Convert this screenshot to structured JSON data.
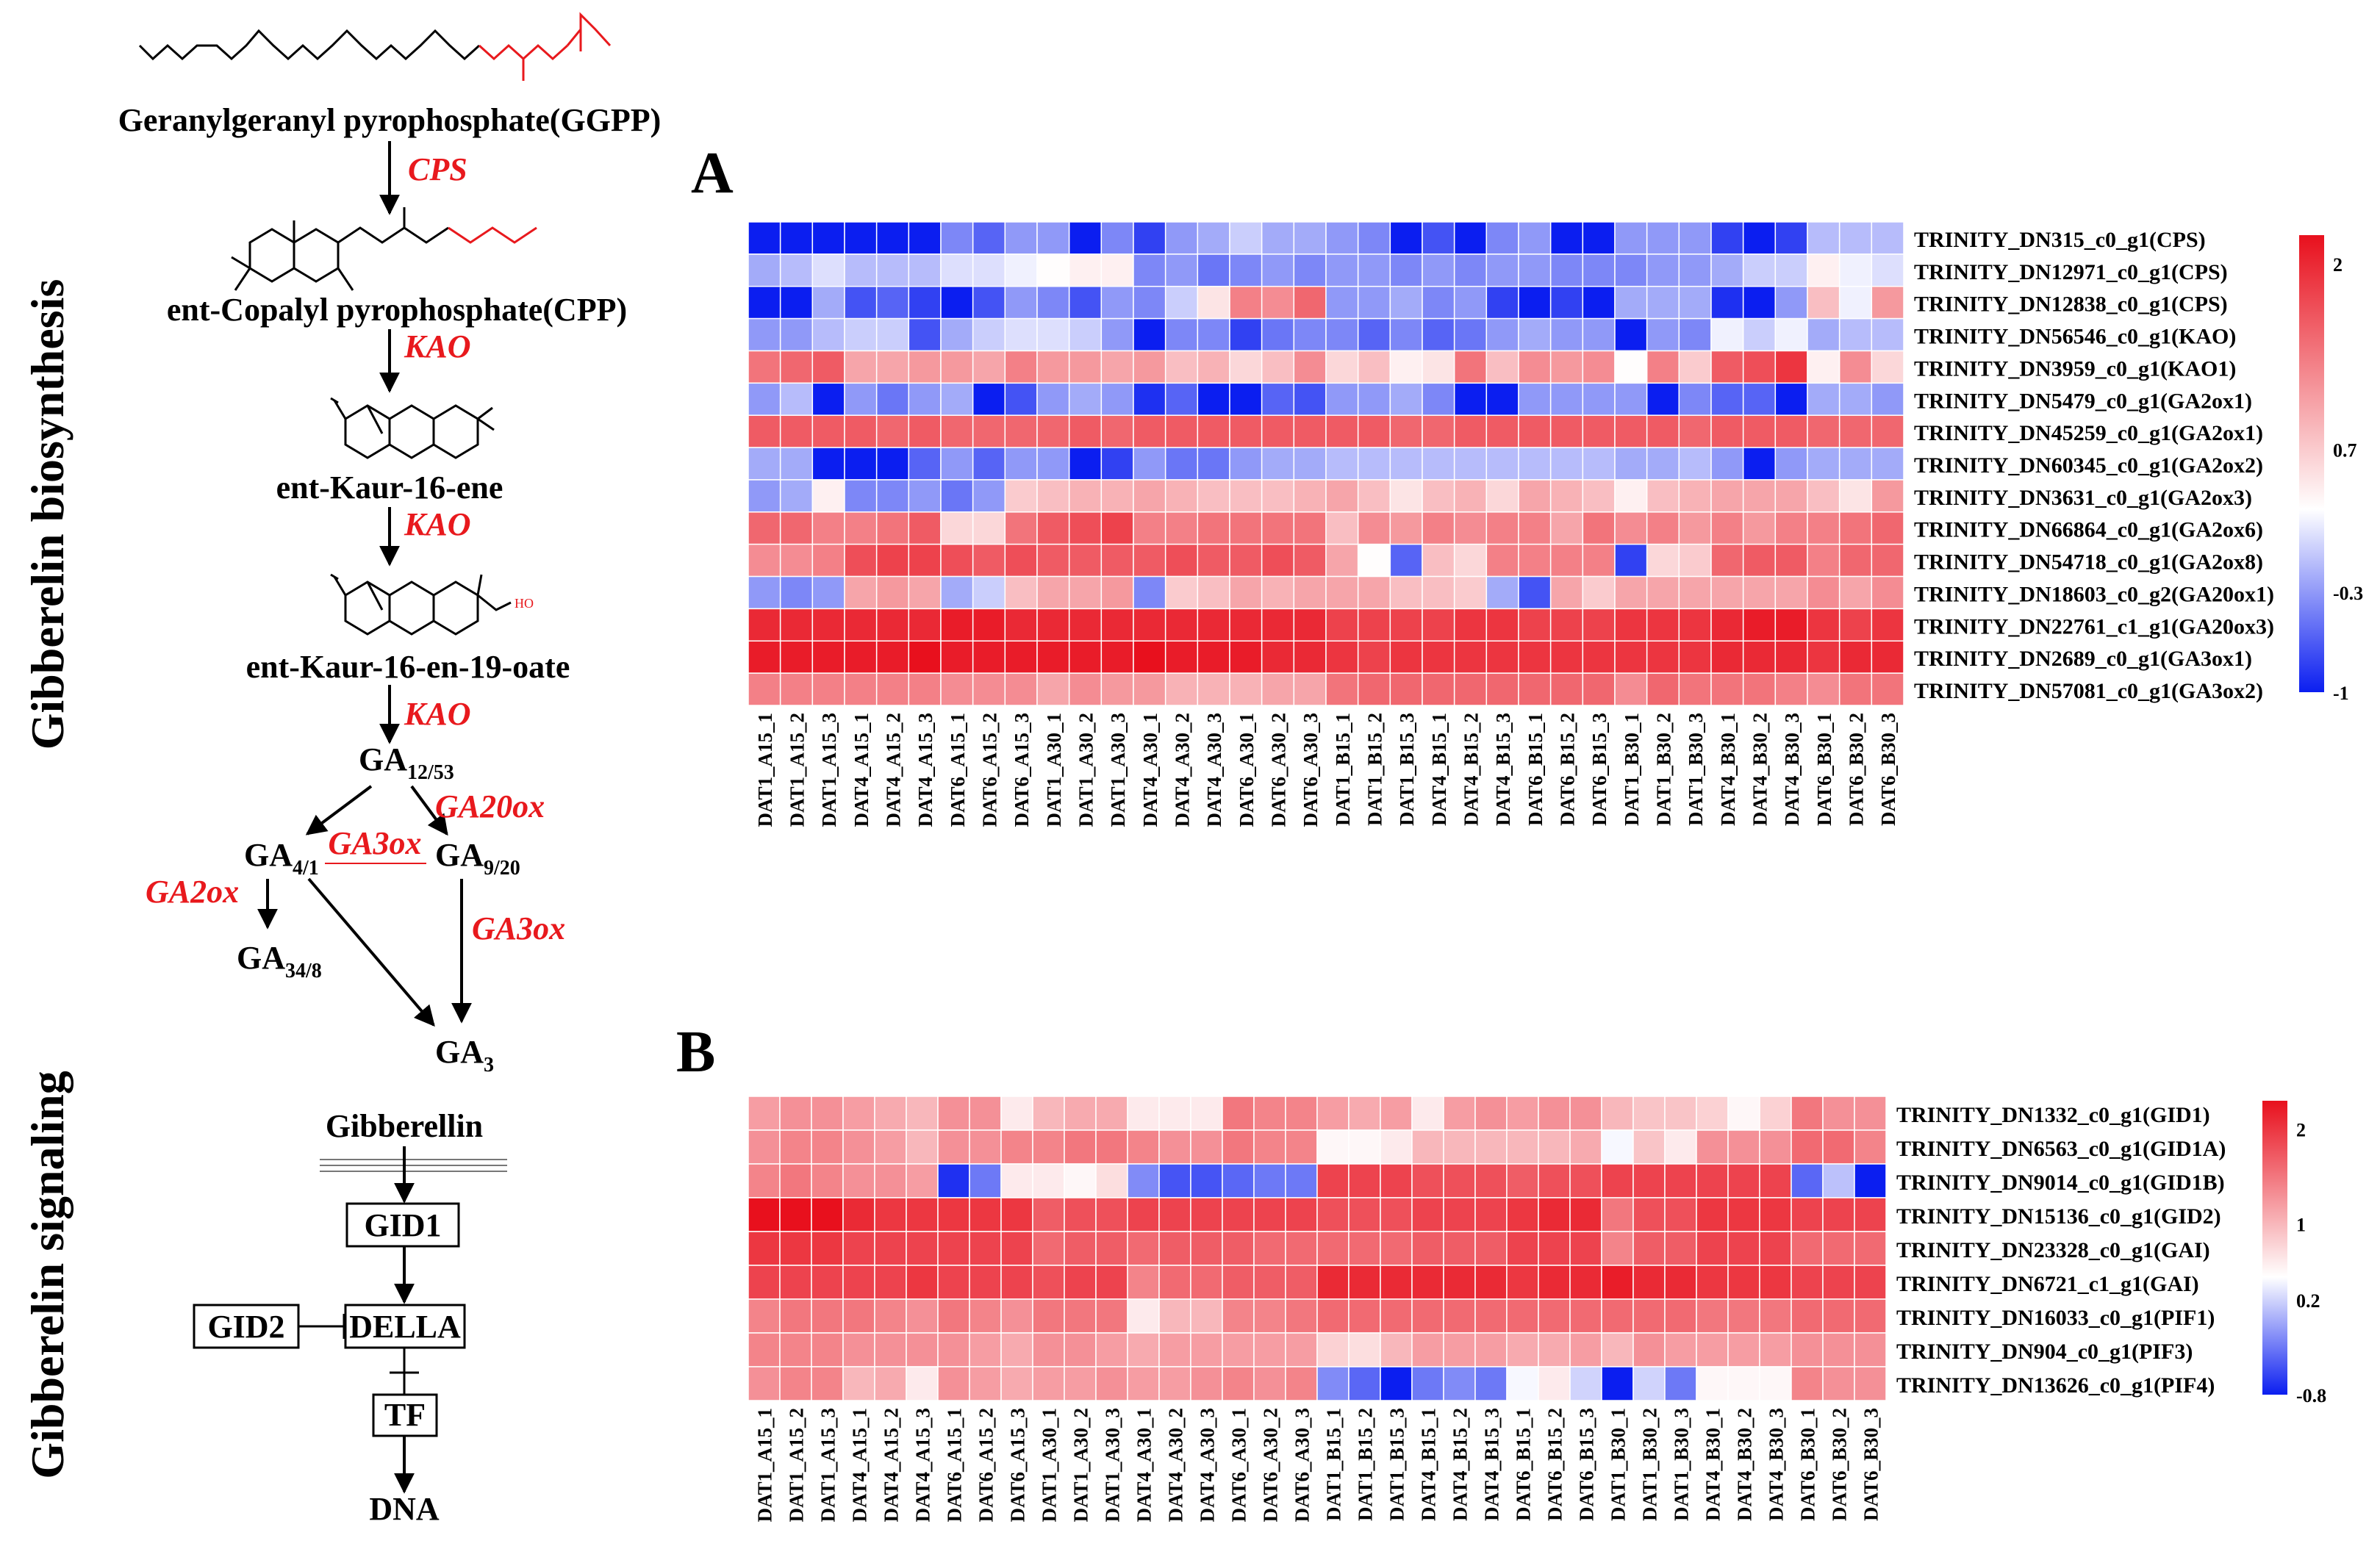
{
  "pathway": {
    "side_label_biosynthesis": "Gibberelin biosynthesis",
    "side_label_signaling": "Gibberelin signaling",
    "compounds": [
      "Geranylgeranyl pyrophosphate(GGPP)",
      "ent-Copalyl pyrophosphate(CPP)",
      "ent-Kaur-16-ene",
      "ent-Kaur-16-en-19-oate"
    ],
    "enzymes": {
      "cps": "CPS",
      "kao1": "KAO",
      "kao2": "KAO",
      "kao3": "KAO",
      "ga20ox": "GA20ox",
      "ga3ox_mid": "GA3ox",
      "ga2ox": "GA2ox",
      "ga3ox_right": "GA3ox"
    },
    "ga_nodes": {
      "ga12": {
        "base": "GA",
        "sub": "12/53"
      },
      "ga4": {
        "base": "GA",
        "sub": "4/1"
      },
      "ga9": {
        "base": "GA",
        "sub": "9/20"
      },
      "ga34": {
        "base": "GA",
        "sub": "34/8"
      },
      "ga3": {
        "base": "GA",
        "sub": "3"
      }
    },
    "signaling": {
      "gibberellin": "Gibberellin",
      "gid1": "GID1",
      "gid2": "GID2",
      "della": "DELLA",
      "tf": "TF",
      "dna": "DNA"
    },
    "colors": {
      "enzyme": "#e8191d",
      "text": "#000000"
    }
  },
  "chart_data": [
    {
      "type": "heatmap",
      "panel_label": "A",
      "colormap": [
        "#0b1ef0",
        "#ffffff",
        "#e8101d"
      ],
      "columns": [
        "DAT1_A15_1",
        "DAT1_A15_2",
        "DAT1_A15_3",
        "DAT4_A15_1",
        "DAT4_A15_2",
        "DAT4_A15_3",
        "DAT6_A15_1",
        "DAT6_A15_2",
        "DAT6_A15_3",
        "DAT1_A30_1",
        "DAT1_A30_2",
        "DAT1_A30_3",
        "DAT4_A30_1",
        "DAT4_A30_2",
        "DAT4_A30_3",
        "DAT6_A30_1",
        "DAT6_A30_2",
        "DAT6_A30_3",
        "DAT1_B15_1",
        "DAT1_B15_2",
        "DAT1_B15_3",
        "DAT4_B15_1",
        "DAT4_B15_2",
        "DAT4_B15_3",
        "DAT6_B15_1",
        "DAT6_B15_2",
        "DAT6_B15_3",
        "DAT1_B30_1",
        "DAT1_B30_2",
        "DAT1_B30_3",
        "DAT4_B30_1",
        "DAT4_B30_2",
        "DAT4_B30_3",
        "DAT6_B30_1",
        "DAT6_B30_2",
        "DAT6_B30_3"
      ],
      "rows": [
        "TRINITY_DN315_c0_g1(CPS)",
        "TRINITY_DN12971_c0_g1(CPS)",
        "TRINITY_DN12838_c0_g1(CPS)",
        "TRINITY_DN56546_c0_g1(KAO)",
        "TRINITY_DN3959_c0_g1(KAO1)",
        "TRINITY_DN5479_c0_g1(GA2ox1)",
        "TRINITY_DN45259_c0_g1(GA2ox1)",
        "TRINITY_DN60345_c0_g1(GA2ox2)",
        "TRINITY_DN3631_c0_g1(GA2ox3)",
        "TRINITY_DN66864_c0_g1(GA2ox6)",
        "TRINITY_DN54718_c0_g1(GA2ox8)",
        "TRINITY_DN18603_c0_g2(GA20ox1)",
        "TRINITY_DN22761_c1_g1(GA20ox3)",
        "TRINITY_DN2689_c0_g1(GA3ox1)",
        "TRINITY_DN57081_c0_g1(GA3ox2)"
      ],
      "scale": {
        "min": -1,
        "max": 2.2,
        "ticks": [
          2,
          0.7,
          -0.3,
          -1
        ]
      },
      "values": [
        [
          -1,
          -1,
          -1,
          -1,
          -1,
          -1,
          -0.4,
          -0.6,
          -0.3,
          -0.3,
          -1,
          -0.4,
          -0.8,
          -0.3,
          -0.2,
          0,
          -0.2,
          -0.2,
          -0.3,
          -0.4,
          -1,
          -0.7,
          -1,
          -0.4,
          -0.3,
          -1,
          -1,
          -0.3,
          -0.3,
          -0.3,
          -0.8,
          -1,
          -0.8,
          -0.1,
          -0.1,
          -0.1
        ],
        [
          -0.2,
          -0.1,
          0.1,
          -0.1,
          -0.1,
          -0.1,
          0.1,
          0.1,
          0.2,
          0.3,
          0.4,
          0.4,
          -0.4,
          -0.3,
          -0.5,
          -0.4,
          -0.3,
          -0.4,
          -0.3,
          -0.3,
          -0.4,
          -0.3,
          -0.4,
          -0.3,
          -0.3,
          -0.4,
          -0.4,
          -0.4,
          -0.3,
          -0.3,
          -0.2,
          0,
          0,
          0.4,
          0.2,
          0.1
        ],
        [
          -1,
          -1,
          -0.2,
          -0.7,
          -0.6,
          -0.8,
          -1,
          -0.7,
          -0.3,
          -0.4,
          -0.7,
          -0.3,
          -0.4,
          0,
          0.5,
          1.3,
          1.2,
          1.5,
          -0.3,
          -0.3,
          -0.2,
          -0.4,
          -0.3,
          -0.8,
          -1,
          -0.8,
          -1,
          -0.2,
          -0.2,
          -0.2,
          -0.9,
          -1,
          -0.3,
          0.8,
          0.2,
          1.1
        ],
        [
          -0.3,
          -0.3,
          -0.1,
          0,
          0,
          -0.7,
          -0.2,
          0,
          0.1,
          0.1,
          0,
          -0.3,
          -1,
          -0.4,
          -0.4,
          -0.8,
          -0.5,
          -0.4,
          -0.4,
          -0.6,
          -0.4,
          -0.6,
          -0.5,
          -0.3,
          -0.2,
          -0.3,
          -0.3,
          -1,
          -0.3,
          -0.4,
          0.2,
          0,
          0.2,
          -0.2,
          -0.1,
          -0.1
        ],
        [
          1.4,
          1.5,
          1.6,
          1,
          1,
          1.1,
          1.1,
          1,
          1.3,
          1.1,
          1.1,
          1,
          1.1,
          0.8,
          0.9,
          0.6,
          0.8,
          1.2,
          0.6,
          0.8,
          0.4,
          0.5,
          1.4,
          0.8,
          1.2,
          1.1,
          1.2,
          0.3,
          1.3,
          0.7,
          1.6,
          1.7,
          1.9,
          0.4,
          1.2,
          0.6
        ],
        [
          -0.3,
          -0.1,
          -1,
          -0.3,
          -0.5,
          -0.3,
          -0.2,
          -1,
          -0.7,
          -0.3,
          -0.2,
          -0.3,
          -0.9,
          -0.6,
          -1,
          -1,
          -0.6,
          -0.7,
          -0.3,
          -0.3,
          -0.2,
          -0.4,
          -1,
          -1,
          -0.3,
          -0.3,
          -0.3,
          -0.3,
          -1,
          -0.4,
          -0.6,
          -0.6,
          -1,
          -0.2,
          -0.2,
          -0.3
        ],
        [
          1.6,
          1.6,
          1.6,
          1.6,
          1.5,
          1.6,
          1.5,
          1.5,
          1.5,
          1.5,
          1.6,
          1.5,
          1.6,
          1.6,
          1.6,
          1.6,
          1.6,
          1.6,
          1.6,
          1.6,
          1.5,
          1.5,
          1.6,
          1.6,
          1.6,
          1.6,
          1.6,
          1.6,
          1.6,
          1.5,
          1.6,
          1.6,
          1.6,
          1.5,
          1.5,
          1.5
        ],
        [
          -0.2,
          -0.2,
          -1,
          -1,
          -1,
          -0.6,
          -0.3,
          -0.6,
          -0.3,
          -0.3,
          -1,
          -0.8,
          -0.3,
          -0.5,
          -0.5,
          -0.3,
          -0.2,
          -0.2,
          -0.1,
          -0.1,
          -0.1,
          -0.1,
          -0.1,
          -0.1,
          -0.1,
          -0.1,
          -0.1,
          -0.2,
          -0.2,
          -0.1,
          -0.3,
          -1,
          -0.3,
          -0.2,
          -0.2,
          -0.2
        ],
        [
          -0.3,
          -0.2,
          0.4,
          -0.4,
          -0.4,
          -0.3,
          -0.5,
          -0.3,
          0.7,
          0.8,
          0.9,
          0.9,
          1,
          0.9,
          0.8,
          0.8,
          0.8,
          0.9,
          1,
          0.8,
          0.5,
          0.8,
          0.9,
          0.6,
          1,
          0.9,
          0.8,
          0.4,
          0.8,
          0.9,
          1,
          1,
          1,
          0.8,
          0.5,
          1.1
        ],
        [
          1.5,
          1.5,
          1.3,
          1.3,
          1.4,
          1.6,
          0.6,
          0.6,
          1.4,
          1.6,
          1.7,
          1.8,
          1.3,
          1.3,
          1.4,
          1.4,
          1.4,
          1.4,
          0.8,
          1.2,
          1.1,
          1.3,
          1.2,
          1.3,
          1.3,
          1,
          1.4,
          1.2,
          1.3,
          1.1,
          1.3,
          1.1,
          1.3,
          1.3,
          1.4,
          1.5
        ],
        [
          1.2,
          1.2,
          1.3,
          1.7,
          1.8,
          1.8,
          1.7,
          1.6,
          1.7,
          1.6,
          1.6,
          1.6,
          1.6,
          1.7,
          1.6,
          1.6,
          1.7,
          1.6,
          1,
          0.3,
          -0.6,
          0.8,
          0.6,
          1.3,
          1.3,
          1.3,
          1.3,
          -0.8,
          0.6,
          0.7,
          1.5,
          1.6,
          1.6,
          1.3,
          1.5,
          1.5
        ],
        [
          -0.3,
          -0.4,
          -0.3,
          1,
          1.1,
          1,
          -0.2,
          0,
          0.8,
          1,
          1,
          1.1,
          -0.4,
          0.7,
          0.8,
          1,
          0.9,
          1,
          1,
          1,
          0.8,
          0.8,
          0.7,
          -0.2,
          -0.7,
          1,
          0.7,
          1,
          1,
          1,
          1,
          1,
          1,
          1.2,
          1,
          1.2
        ],
        [
          2,
          2,
          2,
          2,
          2,
          2,
          2.1,
          2.1,
          2,
          2,
          2,
          2,
          2,
          2,
          2,
          2,
          2,
          2,
          1.8,
          1.8,
          1.8,
          1.8,
          1.9,
          1.9,
          1.8,
          1.8,
          1.8,
          1.9,
          1.9,
          1.9,
          2,
          2.1,
          2.1,
          1.9,
          1.8,
          1.9
        ],
        [
          2.1,
          2.1,
          2.1,
          2.1,
          2.1,
          2.2,
          2.1,
          2.1,
          2.1,
          2.1,
          2.1,
          2.1,
          2.2,
          2.1,
          2.1,
          2.1,
          2,
          2,
          1.9,
          1.8,
          1.9,
          1.9,
          1.9,
          1.9,
          1.9,
          1.9,
          1.9,
          1.9,
          1.9,
          1.9,
          2,
          2,
          2,
          1.9,
          2,
          2
        ],
        [
          1.3,
          1.3,
          1.3,
          1.3,
          1.3,
          1.3,
          1.2,
          1.2,
          1.2,
          1,
          1.2,
          1.1,
          1.1,
          0.9,
          0.9,
          0.9,
          1,
          1,
          1.4,
          1.5,
          1.5,
          1.5,
          1.5,
          1.5,
          1.5,
          1.5,
          1.5,
          1.2,
          1.5,
          1.4,
          1.4,
          1.4,
          1.3,
          1.2,
          1.4,
          1.4
        ]
      ]
    },
    {
      "type": "heatmap",
      "panel_label": "B",
      "colormap": [
        "#0b1ef0",
        "#ffffff",
        "#e8101d"
      ],
      "columns": [
        "DAT1_A15_1",
        "DAT1_A15_2",
        "DAT1_A15_3",
        "DAT4_A15_1",
        "DAT4_A15_2",
        "DAT4_A15_3",
        "DAT6_A15_1",
        "DAT6_A15_2",
        "DAT6_A15_3",
        "DAT1_A30_1",
        "DAT1_A30_2",
        "DAT1_A30_3",
        "DAT4_A30_1",
        "DAT4_A30_2",
        "DAT4_A30_3",
        "DAT6_A30_1",
        "DAT6_A30_2",
        "DAT6_A30_3",
        "DAT1_B15_1",
        "DAT1_B15_2",
        "DAT1_B15_3",
        "DAT4_B15_1",
        "DAT4_B15_2",
        "DAT4_B15_3",
        "DAT6_B15_1",
        "DAT6_B15_2",
        "DAT6_B15_3",
        "DAT1_B30_1",
        "DAT1_B30_2",
        "DAT1_B30_3",
        "DAT4_B30_1",
        "DAT4_B30_2",
        "DAT4_B30_3",
        "DAT6_B30_1",
        "DAT6_B30_2",
        "DAT6_B30_3"
      ],
      "rows": [
        "TRINITY_DN1332_c0_g1(GID1)",
        "TRINITY_DN6563_c0_g1(GID1A)",
        "TRINITY_DN9014_c0_g1(GID1B)",
        "TRINITY_DN15136_c0_g1(GID2)",
        "TRINITY_DN23328_c0_g1(GAI)",
        "TRINITY_DN6721_c1_g1(GAI)",
        "TRINITY_DN16033_c0_g1(PIF1)",
        "TRINITY_DN904_c0_g1(PIF3)",
        "TRINITY_DN13626_c0_g1(PIF4)"
      ],
      "scale": {
        "min": -0.8,
        "max": 2.3,
        "ticks": [
          2,
          1,
          0.2,
          -0.8
        ]
      },
      "values": [
        [
          1.2,
          1.3,
          1.3,
          1.2,
          1.1,
          1,
          1.3,
          1.3,
          0.6,
          1,
          1.1,
          1.1,
          0.6,
          0.6,
          0.6,
          1.5,
          1.4,
          1.4,
          1.2,
          1.1,
          1.2,
          0.6,
          1.2,
          1.3,
          1.2,
          1.3,
          1.3,
          1,
          0.9,
          0.9,
          0.8,
          0.5,
          0.8,
          1.5,
          1.3,
          1.3
        ],
        [
          1.3,
          1.4,
          1.4,
          1.3,
          1.2,
          1,
          1.3,
          1.3,
          1.4,
          1.4,
          1.5,
          1.5,
          1.4,
          1.3,
          1.3,
          1.5,
          1.4,
          1.4,
          0.5,
          0.5,
          0.6,
          1,
          1,
          1,
          1,
          1,
          1.1,
          0.4,
          0.9,
          0.6,
          1.3,
          1.3,
          1.3,
          1.6,
          1.6,
          1.4
        ],
        [
          1.4,
          1.5,
          1.4,
          1.3,
          1.3,
          1.2,
          -0.7,
          -0.3,
          0.6,
          0.6,
          0.5,
          0.7,
          -0.2,
          -0.5,
          -0.5,
          -0.4,
          -0.3,
          -0.3,
          1.9,
          1.9,
          1.9,
          1.8,
          1.8,
          1.8,
          1.7,
          1.8,
          1.8,
          1.9,
          1.9,
          1.9,
          1.9,
          1.9,
          1.9,
          -0.4,
          0.1,
          -0.8
        ],
        [
          2.3,
          2.3,
          2.3,
          2.1,
          2,
          2,
          2,
          2,
          2,
          1.7,
          1.8,
          1.8,
          1.9,
          1.9,
          1.9,
          1.9,
          1.9,
          1.9,
          1.8,
          1.8,
          1.8,
          1.9,
          1.9,
          1.9,
          2,
          2.1,
          2.1,
          1.5,
          1.8,
          1.8,
          2,
          2,
          2,
          1.9,
          1.9,
          1.9
        ],
        [
          2,
          2,
          2,
          1.9,
          1.9,
          1.9,
          1.9,
          1.9,
          1.9,
          1.6,
          1.7,
          1.7,
          1.6,
          1.7,
          1.7,
          1.7,
          1.6,
          1.6,
          1.6,
          1.6,
          1.6,
          1.7,
          1.7,
          1.7,
          1.9,
          1.9,
          1.9,
          1.4,
          1.7,
          1.7,
          1.9,
          1.9,
          1.9,
          1.6,
          1.6,
          1.6
        ],
        [
          1.9,
          1.9,
          1.9,
          1.9,
          1.9,
          2,
          1.9,
          1.9,
          1.9,
          1.8,
          1.9,
          1.9,
          1.4,
          1.6,
          1.6,
          1.7,
          1.7,
          1.7,
          2.1,
          2.1,
          2.1,
          2.1,
          2.1,
          2.1,
          2,
          2.1,
          2.1,
          2.2,
          2.1,
          2.1,
          2,
          2,
          2,
          1.9,
          1.9,
          1.9
        ],
        [
          1.4,
          1.5,
          1.5,
          1.5,
          1.4,
          1.3,
          1.5,
          1.4,
          1.3,
          1.5,
          1.5,
          1.5,
          0.6,
          1,
          1,
          1.4,
          1.4,
          1.5,
          1.6,
          1.6,
          1.6,
          1.6,
          1.6,
          1.6,
          1.6,
          1.6,
          1.6,
          1.6,
          1.6,
          1.6,
          1.5,
          1.5,
          1.5,
          1.6,
          1.6,
          1.6
        ],
        [
          1.4,
          1.4,
          1.4,
          1.3,
          1.3,
          1.3,
          1.3,
          1.2,
          1.1,
          1.3,
          1.3,
          1.2,
          1.1,
          1.2,
          1.2,
          1.2,
          1.2,
          1.2,
          0.8,
          0.7,
          1,
          1.2,
          1.2,
          1.2,
          1.1,
          1.1,
          1.2,
          1,
          1.3,
          1.2,
          1.2,
          1.2,
          1.2,
          1.3,
          1.3,
          1.3
        ],
        [
          1.3,
          1.4,
          1.4,
          1,
          1.1,
          0.6,
          1.3,
          1.2,
          1.1,
          1.2,
          1.2,
          1.3,
          1.2,
          1.2,
          1.3,
          1.4,
          1.3,
          1.4,
          -0.2,
          -0.4,
          -0.8,
          -0.3,
          -0.2,
          -0.3,
          0.4,
          0.6,
          0.2,
          -0.8,
          0.2,
          -0.3,
          0.5,
          0.5,
          0.5,
          1.4,
          1.3,
          1.3
        ]
      ]
    }
  ]
}
